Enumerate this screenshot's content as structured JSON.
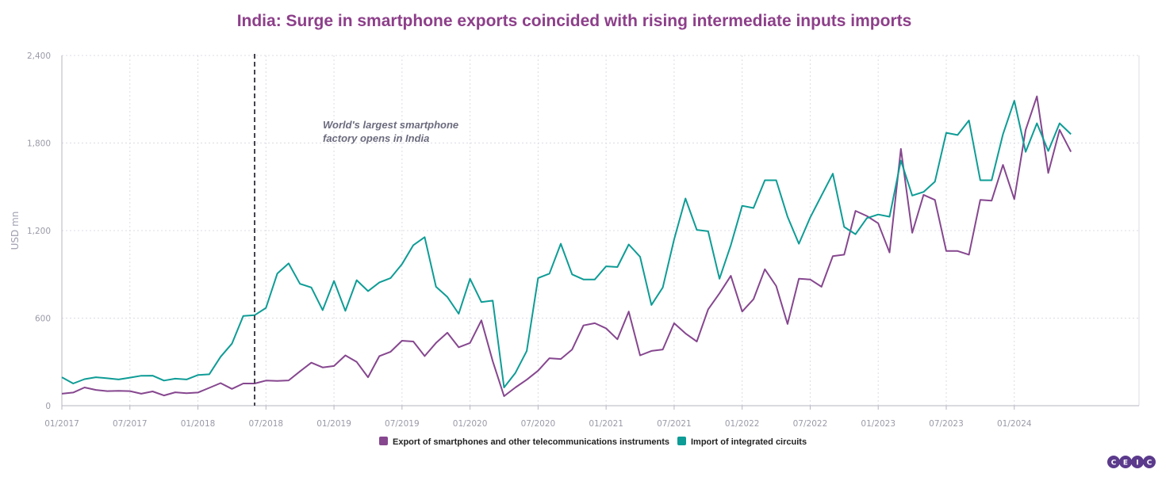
{
  "chart_data": {
    "type": "line",
    "title": "India: Surge in smartphone exports coincided with rising intermediate inputs imports",
    "ylabel": "USD mn",
    "ylim": [
      0,
      2400
    ],
    "yticks": [
      0,
      600,
      1200,
      1800,
      2400
    ],
    "ytick_labels": [
      "0",
      "600",
      "1,200",
      "1,800",
      "2,400"
    ],
    "xlim": [
      "01/2017",
      "12/2024"
    ],
    "xtick_labels": [
      "01/2017",
      "07/2017",
      "01/2018",
      "07/2018",
      "01/2019",
      "07/2019",
      "01/2020",
      "07/2020",
      "01/2021",
      "07/2021",
      "01/2022",
      "07/2022",
      "01/2023",
      "07/2023",
      "01/2024"
    ],
    "grid": true,
    "legend_position": "bottom-center",
    "annotation": {
      "x": "06/2018",
      "lines": [
        "World's largest smartphone",
        "factory opens in India"
      ]
    },
    "x_start": "01/2017",
    "series": [
      {
        "name": "Export of smartphones and other telecommunications instruments",
        "color": "#86478f",
        "values": [
          82,
          90,
          125,
          108,
          100,
          102,
          100,
          82,
          98,
          70,
          92,
          85,
          90,
          122,
          155,
          115,
          152,
          152,
          172,
          170,
          173,
          235,
          295,
          262,
          272,
          345,
          300,
          195,
          340,
          370,
          445,
          440,
          340,
          430,
          500,
          400,
          430,
          585,
          305,
          65,
          125,
          178,
          240,
          325,
          320,
          385,
          550,
          565,
          530,
          455,
          645,
          345,
          375,
          385,
          565,
          495,
          440,
          660,
          770,
          890,
          645,
          730,
          935,
          820,
          560,
          870,
          865,
          815,
          1025,
          1035,
          1335,
          1300,
          1250,
          1050,
          1760,
          1185,
          1445,
          1410,
          1060,
          1060,
          1035,
          1410,
          1405,
          1650,
          1415,
          1890,
          2120,
          1595,
          1890,
          1740
        ]
      },
      {
        "name": "Import of integrated circuits",
        "color": "#0e9c96",
        "values": [
          195,
          152,
          182,
          195,
          188,
          180,
          192,
          205,
          206,
          172,
          185,
          180,
          210,
          215,
          335,
          425,
          615,
          620,
          670,
          905,
          975,
          835,
          810,
          655,
          855,
          650,
          860,
          785,
          845,
          875,
          970,
          1100,
          1155,
          815,
          745,
          630,
          870,
          710,
          720,
          125,
          225,
          375,
          875,
          905,
          1110,
          900,
          865,
          865,
          955,
          950,
          1105,
          1020,
          690,
          810,
          1140,
          1420,
          1205,
          1195,
          870,
          1100,
          1370,
          1355,
          1545,
          1545,
          1295,
          1110,
          1290,
          1440,
          1590,
          1225,
          1175,
          1285,
          1310,
          1295,
          1680,
          1440,
          1465,
          1535,
          1870,
          1855,
          1955,
          1545,
          1545,
          1860,
          2090,
          1740,
          1935,
          1745,
          1935,
          1860
        ]
      }
    ]
  },
  "logo": {
    "letters": [
      "C",
      "E",
      "I",
      "C"
    ],
    "color": "#5b3a8c"
  },
  "colors": {
    "title": "#8d3f8a",
    "grid": "#dcdce4",
    "axis": "#b5b5c2",
    "annotation_line": "#454550"
  }
}
